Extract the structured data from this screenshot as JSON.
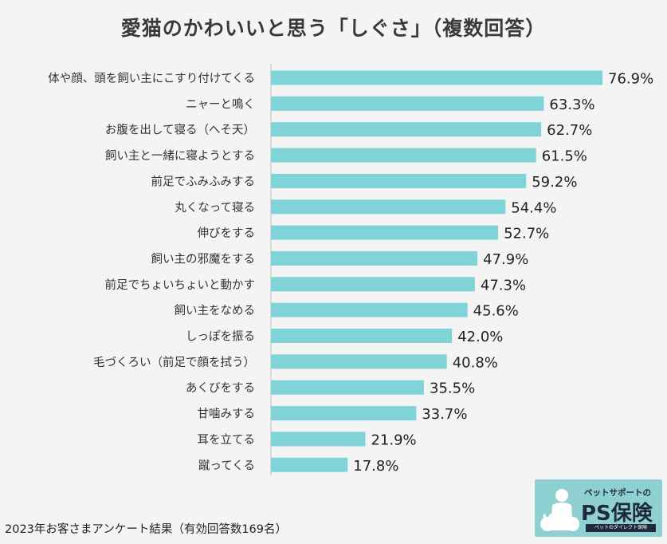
{
  "title": "愛猫のかわいいと思う「しぐさ」（複数回答）",
  "footnote": "2023年お客さまアンケート結果（有効回答数169名）",
  "logo": {
    "tagline": "ペットサポートの",
    "brand": "PS保険",
    "sub": "ペットのダイレクト保険"
  },
  "colors": {
    "bar": "#80d4d8",
    "background": "#f4f4f4",
    "text": "#333333",
    "axis": "#bbbbbb"
  },
  "chart_data": {
    "type": "bar",
    "orientation": "horizontal",
    "title": "愛猫のかわいいと思う「しぐさ」（複数回答）",
    "categories": [
      "体や顔、頭を飼い主にこすり付けてくる",
      "ニャーと鳴く",
      "お腹を出して寝る（へそ天）",
      "飼い主と一緒に寝ようとする",
      "前足でふみふみする",
      "丸くなって寝る",
      "伸びをする",
      "飼い主の邪魔をする",
      "前足でちょいちょいと動かす",
      "飼い主をなめる",
      "しっぽを振る",
      "毛づくろい（前足で顔を拭う）",
      "あくびをする",
      "甘噛みする",
      "耳を立てる",
      "蹴ってくる"
    ],
    "values": [
      76.9,
      63.3,
      62.7,
      61.5,
      59.2,
      54.4,
      52.7,
      47.9,
      47.3,
      45.6,
      42.0,
      40.8,
      35.5,
      33.7,
      21.9,
      17.8
    ],
    "value_labels": [
      "76.9%",
      "63.3%",
      "62.7%",
      "61.5%",
      "59.2%",
      "54.4%",
      "52.7%",
      "47.9%",
      "47.3%",
      "45.6%",
      "42.0%",
      "40.8%",
      "35.5%",
      "33.7%",
      "21.9%",
      "17.8%"
    ],
    "xlim": [
      0,
      76.9
    ],
    "grid": false,
    "legend": "none"
  }
}
